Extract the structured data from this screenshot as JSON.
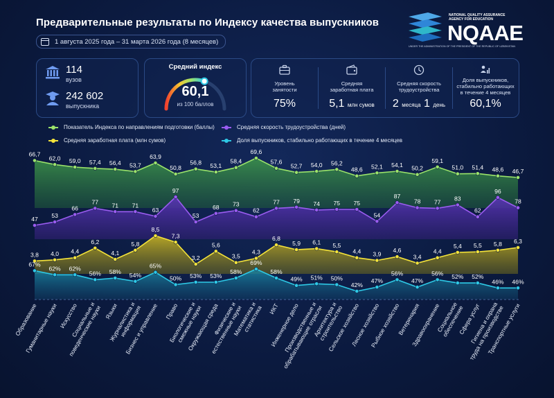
{
  "header": {
    "title": "Предварительные результаты по Индексу качества выпускников",
    "date_range": "1 августа 2025 года – 31 марта 2026 года (8 месяцев)"
  },
  "logo": {
    "name": "NQAAE",
    "agency_line1": "NATIONAL QUALITY ASSURANCE",
    "agency_line2": "AGENCY FOR EDUCATION",
    "under": "UNDER THE ADMINISTRATION OF THE PRESIDENT OF THE REPUBLIC OF UZBEKISTAN"
  },
  "summary": {
    "universities_value": "114",
    "universities_label": "вузов",
    "graduates_value": "242 602",
    "graduates_label": "выпускника",
    "index_title": "Средний индекс",
    "index_value": "60,1",
    "index_sub": "из 100 баллов",
    "index_gauge_fraction": 0.601
  },
  "kpis": [
    {
      "icon": "briefcase-icon",
      "label_line1": "Уровень",
      "label_line2": "занятости",
      "label_line3": "",
      "value": "75%",
      "unit1": "",
      "value2": "",
      "unit2": ""
    },
    {
      "icon": "wallet-icon",
      "label_line1": "Средняя",
      "label_line2": "заработная плата",
      "label_line3": "",
      "value": "5,1",
      "unit1": "млн сумов",
      "value2": "",
      "unit2": ""
    },
    {
      "icon": "clock-icon",
      "label_line1": "Средняя скорость",
      "label_line2": "трудоустройства",
      "label_line3": "",
      "value": "2",
      "unit1": "месяца",
      "value2": "1",
      "unit2": "день"
    },
    {
      "icon": "people-chart-icon",
      "label_line1": "Доля выпускников,",
      "label_line2": "стабильно работающих",
      "label_line3": "в течение 4 месяцев",
      "value": "60,1%",
      "unit1": "",
      "value2": "",
      "unit2": ""
    }
  ],
  "legend": [
    {
      "label": "Показатель Индекса по направлениям подготовки (баллы)",
      "color": "#9be36a"
    },
    {
      "label": "Средняя скорость трудоустройства (дней)",
      "color": "#9a5cf0"
    },
    {
      "label": "Средняя заработная плата (млн сумов)",
      "color": "#f4e33a"
    },
    {
      "label": "Доля выпускников, стабильно работающих в течение 4 месяцев",
      "color": "#2ec9e6"
    }
  ],
  "chart_data": {
    "type": "line",
    "categories": [
      "Образование",
      "Гуманитарные науки",
      "Искусство",
      "Социальные и поведенческие науки",
      "Языки",
      "Журналистика и информация",
      "Бизнес и управление",
      "Право",
      "Биологические и смежные науки",
      "Окружающая среда",
      "Физические и естественные науки",
      "Математика и статистика",
      "ИКТ",
      "Инженерное дело",
      "Производственные и обрабатывающие отрасли",
      "Архитектура и строительство",
      "Сельское хозяйство",
      "Лесное хозяйство",
      "Рыбное хозяйство",
      "Ветеринария",
      "Здравоохранение",
      "Социальное обеспечение",
      "Сфера услуг",
      "Гигиена и охрана труда на производстве",
      "Транспортные услуги"
    ],
    "series": [
      {
        "name": "Показатель Индекса по направлениям подготовки (баллы)",
        "color": "#9be36a",
        "values": [
          66.7,
          62.0,
          59.0,
          57.4,
          56.4,
          53.7,
          63.9,
          50.8,
          56.8,
          53.1,
          58.4,
          69.6,
          57.6,
          52.7,
          54.0,
          56.2,
          48.6,
          52.1,
          54.1,
          50.2,
          59.1,
          51.0,
          51.4,
          48.6,
          46.7
        ],
        "labels": [
          "66,7",
          "62,0",
          "59,0",
          "57,4",
          "56,4",
          "53,7",
          "63,9",
          "50,8",
          "56,8",
          "53,1",
          "58,4",
          "69,6",
          "57,6",
          "52,7",
          "54,0",
          "56,2",
          "48,6",
          "52,1",
          "54,1",
          "50,2",
          "59,1",
          "51,0",
          "51,4",
          "48,6",
          "46,7"
        ]
      },
      {
        "name": "Средняя скорость трудоустройства (дней)",
        "color": "#9a5cf0",
        "values": [
          47,
          53,
          66,
          77,
          71,
          71,
          63,
          97,
          53,
          68,
          73,
          62,
          77,
          79,
          74,
          75,
          75,
          54,
          87,
          78,
          77,
          83,
          62,
          96,
          78
        ],
        "labels": [
          "47",
          "53",
          "66",
          "77",
          "71",
          "71",
          "63",
          "97",
          "53",
          "68",
          "73",
          "62",
          "77",
          "79",
          "74",
          "75",
          "75",
          "54",
          "87",
          "78",
          "77",
          "83",
          "62",
          "96",
          "78"
        ]
      },
      {
        "name": "Средняя заработная плата (млн сумов)",
        "color": "#f4e33a",
        "values": [
          3.8,
          4.0,
          4.4,
          6.2,
          4.1,
          5.8,
          8.5,
          7.3,
          3.2,
          5.6,
          3.5,
          4.3,
          6.8,
          5.9,
          6.1,
          5.5,
          4.4,
          3.9,
          4.6,
          3.4,
          4.4,
          5.4,
          5.5,
          5.8,
          6.3
        ],
        "labels": [
          "3,8",
          "4,0",
          "4,4",
          "6,2",
          "4,1",
          "5,8",
          "8,5",
          "7,3",
          "3,2",
          "5,6",
          "3,5",
          "4,3",
          "6,8",
          "5,9",
          "6,1",
          "5,5",
          "4,4",
          "3,9",
          "4,6",
          "3,4",
          "4,4",
          "5,4",
          "5,5",
          "5,8",
          "6,3"
        ]
      },
      {
        "name": "Доля выпускников, стабильно работающих в течение 4 месяцев",
        "color": "#2ec9e6",
        "values": [
          67,
          62,
          62,
          56,
          58,
          54,
          65,
          50,
          53,
          53,
          58,
          69,
          58,
          49,
          51,
          50,
          42,
          47,
          56,
          47,
          56,
          52,
          52,
          46,
          46
        ],
        "labels": [
          "67%",
          "62%",
          "62%",
          "56%",
          "58%",
          "54%",
          "65%",
          "50%",
          "53%",
          "53%",
          "58%",
          "69%",
          "58%",
          "49%",
          "51%",
          "50%",
          "42%",
          "47%",
          "56%",
          "47%",
          "56%",
          "52%",
          "52%",
          "46%",
          "46%"
        ]
      }
    ]
  }
}
